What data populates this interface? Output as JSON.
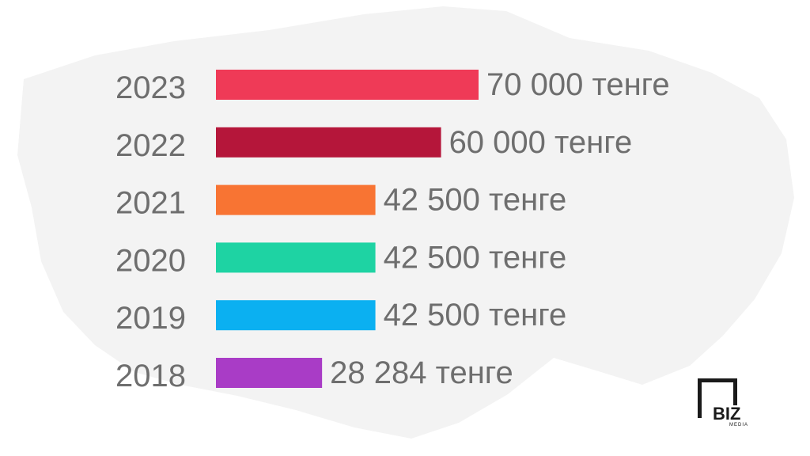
{
  "chart_data": {
    "type": "bar",
    "orientation": "horizontal",
    "categories": [
      "2023",
      "2022",
      "2021",
      "2020",
      "2019",
      "2018"
    ],
    "values": [
      70000,
      60000,
      42500,
      42500,
      42500,
      28284
    ],
    "value_labels": [
      "70 000 тенге",
      "60 000 тенге",
      "42 500  тенге",
      "42 500  тенге",
      "42 500  тенге",
      "28 284 тенге"
    ],
    "colors": [
      "#ef3a57",
      "#b5163a",
      "#f87433",
      "#1ed3a3",
      "#0bb0f1",
      "#a93cc6"
    ],
    "title": "",
    "xlabel": "",
    "ylabel": "",
    "xlim": [
      0,
      70000
    ],
    "grid": false,
    "legend": "none"
  },
  "logo": {
    "brand": "BIZ",
    "sub": "MEDIA"
  }
}
